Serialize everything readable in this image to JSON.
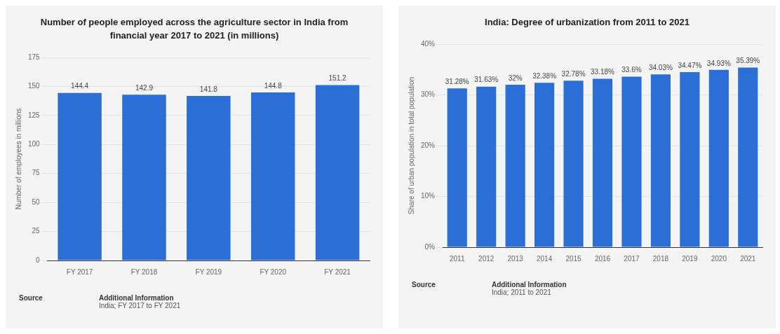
{
  "chart_data": [
    {
      "type": "bar",
      "title": "Number of people employed across the agriculture sector in India from financial year 2017 to 2021 (in millions)",
      "ylabel": "Number of employees in millions",
      "categories": [
        "FY 2017",
        "FY 2018",
        "FY 2019",
        "FY 2020",
        "FY 2021"
      ],
      "values": [
        144.4,
        142.9,
        141.8,
        144.8,
        151.2
      ],
      "color": "#2b6fd6",
      "ylim": [
        0,
        175
      ],
      "yticks": [
        0,
        25,
        50,
        75,
        100,
        125,
        150,
        175
      ],
      "grid": "y",
      "data_labels": true,
      "annotations": [
        "Source",
        "Additional Information",
        "India; FY 2017 to FY 2021"
      ]
    },
    {
      "type": "bar",
      "title": "India: Degree of urbanization from 2011 to 2021",
      "ylabel": "Share of urban population in total population",
      "categories": [
        "2011",
        "2012",
        "2013",
        "2014",
        "2015",
        "2016",
        "2017",
        "2018",
        "2019",
        "2020",
        "2021"
      ],
      "values": [
        31.28,
        31.63,
        32,
        32.38,
        32.78,
        33.18,
        33.6,
        34.03,
        34.47,
        34.93,
        35.39
      ],
      "value_labels": [
        "31.28%",
        "31.63%",
        "32%",
        "32.38%",
        "32.78%",
        "33.18%",
        "33.6%",
        "34.03%",
        "34.47%",
        "34.93%",
        "35.39%"
      ],
      "color": "#2b6fd6",
      "ylim": [
        0,
        40
      ],
      "yticks": [
        {
          "value": 0,
          "label": "0%"
        },
        {
          "value": 10,
          "label": "10%"
        },
        {
          "value": 20,
          "label": "20%"
        },
        {
          "value": 30,
          "label": "30%"
        },
        {
          "value": 40,
          "label": "40%"
        }
      ],
      "grid": "y",
      "annotations": [
        "Source",
        "Additional Information",
        "India; 2011 to 2021"
      ]
    }
  ]
}
